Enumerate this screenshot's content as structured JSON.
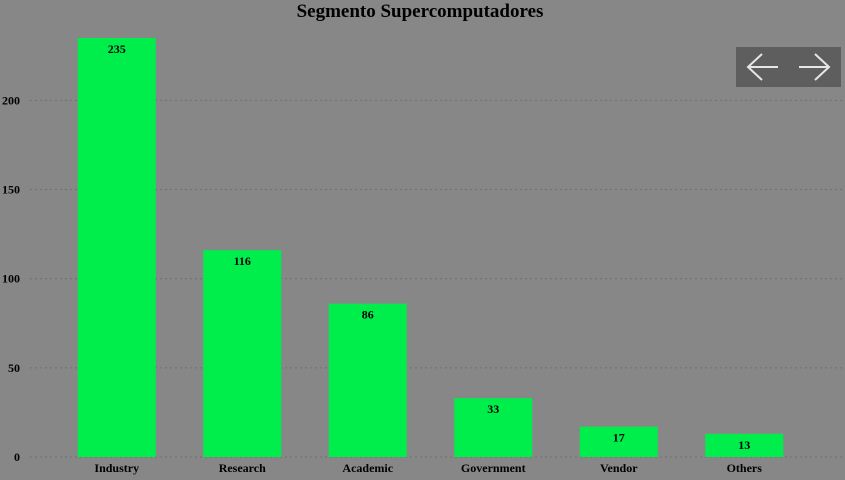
{
  "nav": {
    "prev_icon": "arrow-left-icon",
    "next_icon": "arrow-right-icon"
  },
  "colors": {
    "background": "#878787",
    "bar": "#00ee4c",
    "grid": "#6f6f6f",
    "nav_box": "#5e5e5e",
    "nav_arrow": "#e6e6e6"
  },
  "chart_data": {
    "type": "bar",
    "title": "Segmento Supercomputadores",
    "xlabel": "",
    "ylabel": "",
    "categories": [
      "Industry",
      "Research",
      "Academic",
      "Government",
      "Vendor",
      "Others"
    ],
    "values": [
      235,
      116,
      86,
      33,
      17,
      13
    ],
    "ylim": [
      0,
      235
    ],
    "yticks": [
      0,
      50,
      100,
      150,
      200
    ],
    "grid": true,
    "legend": "none"
  }
}
